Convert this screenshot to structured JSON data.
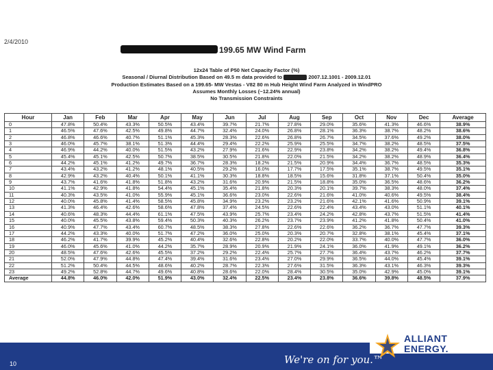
{
  "header": {
    "date": "2/4/2010",
    "title": "199.65 MW Wind Farm",
    "subtitle_lines": [
      "12x24 Table of P50 Net Capacity Factor (%)",
      "Production Estimates Based on a 199.65- MW Vestas - V82 80 m Hub Height Wind Farm Analyzed in WindPRO",
      "Assumes Monthly Losses (~12.24% annual)",
      "No Transmission Constraints"
    ],
    "seasonal_prefix": "Seasonal / Diurnal Distribution Based on 49.5 m data provided to",
    "seasonal_suffix": "2007.12.1001 - 2009.12.01"
  },
  "table": {
    "columns": [
      "Hour",
      "Jan",
      "Feb",
      "Mar",
      "Apr",
      "May",
      "Jun",
      "Jul",
      "Aug",
      "Sep",
      "Oct",
      "Nov",
      "Dec",
      "Average"
    ],
    "rows": [
      [
        "0",
        "47.8%",
        "50.4%",
        "43.3%",
        "50.5%",
        "43.4%",
        "39.7%",
        "21.7%",
        "27.8%",
        "29.0%",
        "35.6%",
        "41.3%",
        "46.6%",
        "38.9%"
      ],
      [
        "1",
        "46.5%",
        "47.6%",
        "42.5%",
        "49.8%",
        "44.7%",
        "32.4%",
        "24.0%",
        "26.8%",
        "28.1%",
        "36.3%",
        "38.7%",
        "48.2%",
        "38.6%"
      ],
      [
        "2",
        "46.8%",
        "46.6%",
        "40.7%",
        "51.1%",
        "45.3%",
        "28.3%",
        "22.6%",
        "26.8%",
        "26.7%",
        "34.5%",
        "37.6%",
        "49.2%",
        "38.0%"
      ],
      [
        "3",
        "46.0%",
        "45.7%",
        "38.1%",
        "51.3%",
        "44.4%",
        "29.4%",
        "22.2%",
        "25.9%",
        "25.5%",
        "34.7%",
        "38.2%",
        "48.5%",
        "37.5%"
      ],
      [
        "4",
        "46.9%",
        "44.2%",
        "40.0%",
        "51.5%",
        "43.2%",
        "27.9%",
        "21.6%",
        "22.9%",
        "23.8%",
        "34.2%",
        "38.2%",
        "49.4%",
        "36.8%"
      ],
      [
        "5",
        "45.4%",
        "45.1%",
        "42.5%",
        "50.7%",
        "38.5%",
        "30.5%",
        "21.8%",
        "22.0%",
        "21.5%",
        "34.2%",
        "38.2%",
        "48.9%",
        "36.4%"
      ],
      [
        "6",
        "44.2%",
        "45.1%",
        "41.2%",
        "49.7%",
        "36.7%",
        "28.3%",
        "18.2%",
        "21.5%",
        "20.9%",
        "34.4%",
        "36.7%",
        "48.5%",
        "35.3%"
      ],
      [
        "7",
        "43.4%",
        "43.2%",
        "41.2%",
        "48.1%",
        "40.5%",
        "29.2%",
        "16.0%",
        "17.7%",
        "17.5%",
        "35.1%",
        "38.7%",
        "49.5%",
        "35.1%"
      ],
      [
        "8",
        "42.9%",
        "43.2%",
        "40.4%",
        "50.1%",
        "41.1%",
        "30.3%",
        "18.8%",
        "18.5%",
        "15.6%",
        "31.8%",
        "37.1%",
        "50.4%",
        "35.0%"
      ],
      [
        "9",
        "43.7%",
        "41.6%",
        "41.8%",
        "51.8%",
        "43.2%",
        "31.6%",
        "20.9%",
        "21.5%",
        "18.8%",
        "35.0%",
        "36.5%",
        "48.6%",
        "36.2%"
      ],
      [
        "10",
        "41.1%",
        "42.9%",
        "41.8%",
        "54.4%",
        "45.1%",
        "35.4%",
        "21.8%",
        "20.3%",
        "20.1%",
        "39.7%",
        "38.3%",
        "48.0%",
        "37.4%"
      ],
      [
        "11",
        "40.3%",
        "43.5%",
        "41.0%",
        "55.9%",
        "45.1%",
        "36.6%",
        "23.0%",
        "22.6%",
        "21.6%",
        "41.0%",
        "40.6%",
        "49.5%",
        "38.4%"
      ],
      [
        "12",
        "40.0%",
        "45.8%",
        "41.4%",
        "58.5%",
        "45.8%",
        "34.9%",
        "23.2%",
        "23.2%",
        "21.6%",
        "42.1%",
        "41.6%",
        "50.9%",
        "39.1%"
      ],
      [
        "13",
        "41.3%",
        "46.4%",
        "42.6%",
        "58.6%",
        "47.8%",
        "37.4%",
        "24.5%",
        "22.6%",
        "22.4%",
        "43.4%",
        "43.0%",
        "51.1%",
        "40.1%"
      ],
      [
        "14",
        "40.6%",
        "48.3%",
        "44.4%",
        "61.1%",
        "47.5%",
        "43.9%",
        "25.7%",
        "23.4%",
        "24.2%",
        "42.8%",
        "43.7%",
        "51.5%",
        "41.4%"
      ],
      [
        "15",
        "40.0%",
        "45.5%",
        "43.8%",
        "59.4%",
        "50.3%",
        "40.3%",
        "26.2%",
        "23.7%",
        "23.9%",
        "41.2%",
        "41.8%",
        "50.4%",
        "41.0%"
      ],
      [
        "16",
        "40.9%",
        "47.7%",
        "43.4%",
        "60.7%",
        "48.5%",
        "38.3%",
        "27.8%",
        "22.6%",
        "22.6%",
        "36.2%",
        "36.7%",
        "47.7%",
        "39.3%"
      ],
      [
        "17",
        "44.2%",
        "43.3%",
        "40.0%",
        "51.7%",
        "47.2%",
        "36.0%",
        "25.0%",
        "20.3%",
        "20.7%",
        "32.8%",
        "38.1%",
        "45.4%",
        "37.1%"
      ],
      [
        "18",
        "46.2%",
        "41.7%",
        "39.9%",
        "45.2%",
        "40.4%",
        "32.6%",
        "22.8%",
        "20.2%",
        "22.0%",
        "33.7%",
        "40.0%",
        "47.7%",
        "36.0%"
      ],
      [
        "19",
        "46.0%",
        "45.6%",
        "41.0%",
        "44.2%",
        "35.7%",
        "28.9%",
        "20.9%",
        "21.9%",
        "24.1%",
        "36.0%",
        "41.9%",
        "49.1%",
        "36.2%"
      ],
      [
        "20",
        "48.5%",
        "47.6%",
        "42.6%",
        "45.5%",
        "37.2%",
        "29.2%",
        "22.4%",
        "25.7%",
        "27.7%",
        "36.4%",
        "43.7%",
        "46.2%",
        "37.7%"
      ],
      [
        "21",
        "52.0%",
        "47.9%",
        "44.8%",
        "47.4%",
        "39.4%",
        "31.6%",
        "23.4%",
        "27.0%",
        "29.9%",
        "36.5%",
        "44.0%",
        "45.4%",
        "39.1%"
      ],
      [
        "22",
        "51.2%",
        "50.4%",
        "44.5%",
        "48.6%",
        "40.2%",
        "28.7%",
        "22.3%",
        "27.6%",
        "31.5%",
        "36.3%",
        "43.1%",
        "46.3%",
        "39.3%"
      ],
      [
        "23",
        "49.2%",
        "52.8%",
        "44.7%",
        "49.6%",
        "40.8%",
        "28.6%",
        "22.0%",
        "28.4%",
        "30.5%",
        "35.0%",
        "42.9%",
        "45.0%",
        "39.1%"
      ]
    ],
    "average_row": [
      "Average",
      "44.8%",
      "46.0%",
      "42.0%",
      "51.9%",
      "43.0%",
      "32.4%",
      "22.5%",
      "23.4%",
      "23.8%",
      "36.6%",
      "39.8%",
      "48.5%",
      "37.9%"
    ]
  },
  "footer": {
    "page_number": "10",
    "tagline": "We're on for you.™",
    "logo_line1": "ALLIANT",
    "logo_line2": "ENERGY."
  },
  "colors": {
    "footer_bar": "#1f3c88",
    "logo_orange": "#f5a623"
  }
}
